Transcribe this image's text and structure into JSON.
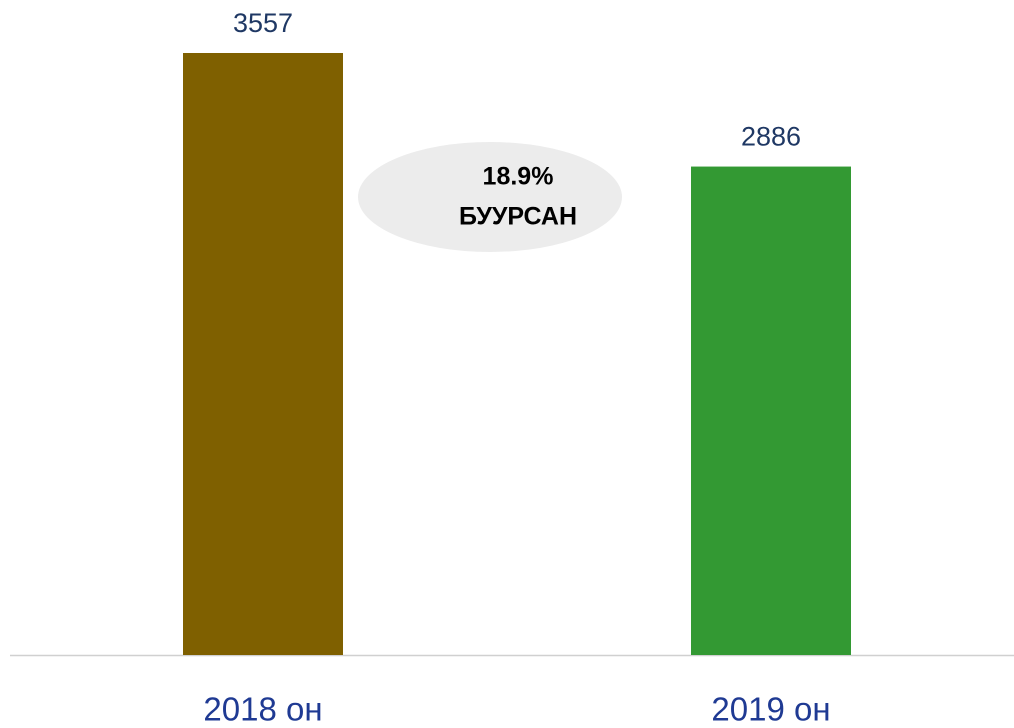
{
  "chart_data": {
    "type": "bar",
    "categories": [
      "2018 он",
      "2019 он"
    ],
    "values": [
      3557,
      2886
    ],
    "colors": [
      "#7f6000",
      "#339933"
    ],
    "annotations": [
      "18.9%",
      "БУУРСАН"
    ]
  }
}
